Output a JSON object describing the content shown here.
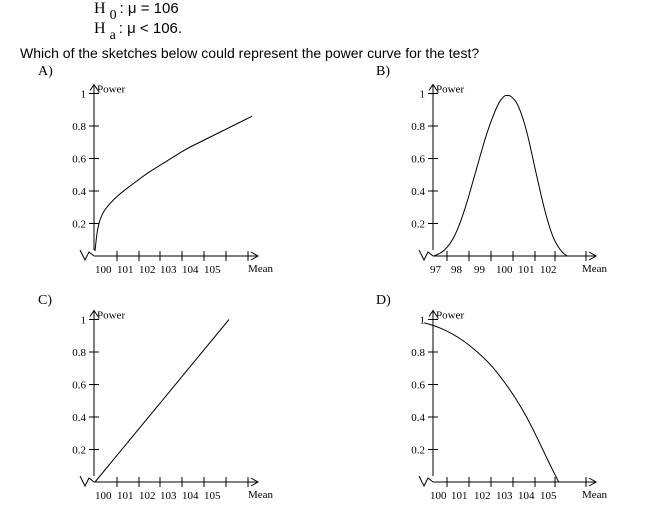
{
  "hypotheses": {
    "h0": {
      "letter": "H",
      "sub": "0",
      "text": ": μ = 106"
    },
    "ha": {
      "letter": "H",
      "sub": "a",
      "text": ": μ < 106."
    }
  },
  "question": "Which of the sketches below could represent the power curve for the test?",
  "chart_data": [
    {
      "type": "line",
      "label": "A)",
      "ylabel": "Power",
      "xlabel": "Mean",
      "x_ticks": [
        "100",
        "101",
        "102",
        "103",
        "104",
        "105"
      ],
      "y_ticks": [
        "0.2",
        "0.4",
        "0.6",
        "0.8",
        "1"
      ],
      "ylim": [
        0,
        1
      ],
      "series": [
        {
          "x": [
            100,
            100.1,
            100.3,
            100.6,
            101,
            101.5,
            102,
            102.5,
            103,
            103.5,
            104,
            104.5,
            105,
            105.5,
            106
          ],
          "values": [
            0.03,
            0.18,
            0.27,
            0.33,
            0.39,
            0.45,
            0.51,
            0.56,
            0.61,
            0.66,
            0.7,
            0.74,
            0.78,
            0.82,
            0.86
          ]
        }
      ]
    },
    {
      "type": "line",
      "label": "B)",
      "ylabel": "Power",
      "xlabel": "Mean",
      "x_ticks": [
        "97",
        "98",
        "99",
        "100",
        "101",
        "102"
      ],
      "y_ticks": [
        "0.2",
        "0.4",
        "0.6",
        "0.8",
        "1"
      ],
      "ylim": [
        0,
        1
      ],
      "series": [
        {
          "x": [
            96.8,
            97.3,
            97.8,
            98.3,
            98.8,
            99.3,
            99.8,
            100.1,
            100.3,
            100.5,
            100.8,
            101.2,
            101.6,
            102,
            102.4,
            102.8,
            103.1
          ],
          "values": [
            0.0,
            0.03,
            0.12,
            0.3,
            0.53,
            0.76,
            0.93,
            0.985,
            0.99,
            0.98,
            0.93,
            0.77,
            0.53,
            0.3,
            0.12,
            0.03,
            0.0
          ]
        }
      ]
    },
    {
      "type": "line",
      "label": "C)",
      "ylabel": "Power",
      "xlabel": "Mean",
      "x_ticks": [
        "100",
        "101",
        "102",
        "103",
        "104",
        "105"
      ],
      "y_ticks": [
        "0.2",
        "0.4",
        "0.6",
        "0.8",
        "1"
      ],
      "ylim": [
        0,
        1
      ],
      "series": [
        {
          "x": [
            100,
            106
          ],
          "values": [
            0.0,
            1.0
          ]
        }
      ]
    },
    {
      "type": "line",
      "label": "D)",
      "ylabel": "Power",
      "xlabel": "Mean",
      "x_ticks": [
        "100",
        "101",
        "102",
        "103",
        "104",
        "105"
      ],
      "y_ticks": [
        "0.2",
        "0.4",
        "0.6",
        "0.8",
        "1"
      ],
      "ylim": [
        0,
        1
      ],
      "series": [
        {
          "x": [
            100,
            100.5,
            101,
            101.5,
            102,
            102.5,
            103,
            103.5,
            104,
            104.5,
            105,
            105.5,
            105.9
          ],
          "values": [
            0.98,
            0.96,
            0.93,
            0.89,
            0.84,
            0.78,
            0.71,
            0.62,
            0.52,
            0.4,
            0.26,
            0.11,
            0.0
          ]
        }
      ]
    }
  ]
}
